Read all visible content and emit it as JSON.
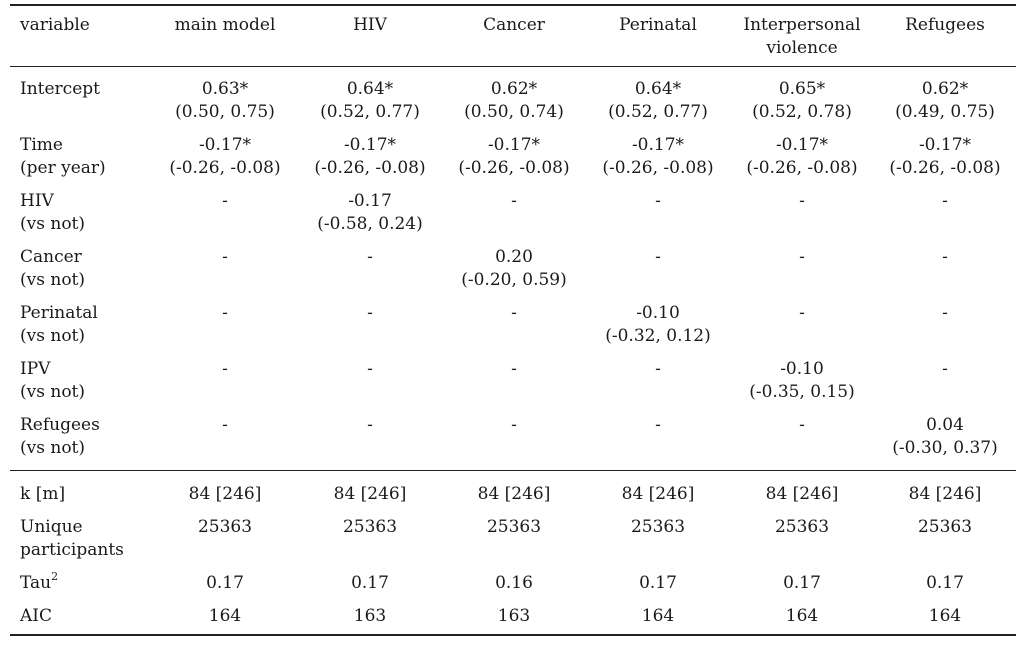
{
  "table": {
    "headers": [
      [
        "variable"
      ],
      [
        "main model"
      ],
      [
        "HIV"
      ],
      [
        "Cancer"
      ],
      [
        "Perinatal"
      ],
      [
        "Interpersonal",
        "violence"
      ],
      [
        "Refugees"
      ]
    ],
    "coef_rows": [
      {
        "label": [
          "Intercept",
          ""
        ],
        "cells": [
          [
            "0.63*",
            "(0.50, 0.75)"
          ],
          [
            "0.64*",
            "(0.52, 0.77)"
          ],
          [
            "0.62*",
            "(0.50, 0.74)"
          ],
          [
            "0.64*",
            "(0.52, 0.77)"
          ],
          [
            "0.65*",
            "(0.52, 0.78)"
          ],
          [
            "0.62*",
            "(0.49, 0.75)"
          ]
        ]
      },
      {
        "label": [
          "Time",
          "(per year)"
        ],
        "cells": [
          [
            "-0.17*",
            "(-0.26, -0.08)"
          ],
          [
            "-0.17*",
            "(-0.26, -0.08)"
          ],
          [
            "-0.17*",
            "(-0.26, -0.08)"
          ],
          [
            "-0.17*",
            "(-0.26, -0.08)"
          ],
          [
            "-0.17*",
            "(-0.26, -0.08)"
          ],
          [
            "-0.17*",
            "(-0.26, -0.08)"
          ]
        ]
      },
      {
        "label": [
          "HIV",
          "(vs not)"
        ],
        "cells": [
          [
            "-",
            ""
          ],
          [
            "-0.17",
            "(-0.58, 0.24)"
          ],
          [
            "-",
            ""
          ],
          [
            "-",
            ""
          ],
          [
            "-",
            ""
          ],
          [
            "-",
            ""
          ]
        ]
      },
      {
        "label": [
          "Cancer",
          "(vs not)"
        ],
        "cells": [
          [
            "-",
            ""
          ],
          [
            "-",
            ""
          ],
          [
            "0.20",
            "(-0.20, 0.59)"
          ],
          [
            "-",
            ""
          ],
          [
            "-",
            ""
          ],
          [
            "-",
            ""
          ]
        ]
      },
      {
        "label": [
          "Perinatal",
          "(vs not)"
        ],
        "cells": [
          [
            "-",
            ""
          ],
          [
            "-",
            ""
          ],
          [
            "-",
            ""
          ],
          [
            "-0.10",
            "(-0.32, 0.12)"
          ],
          [
            "-",
            ""
          ],
          [
            "-",
            ""
          ]
        ]
      },
      {
        "label": [
          "IPV",
          "(vs not)"
        ],
        "cells": [
          [
            "-",
            ""
          ],
          [
            "-",
            ""
          ],
          [
            "-",
            ""
          ],
          [
            "-",
            ""
          ],
          [
            "-0.10",
            "(-0.35, 0.15)"
          ],
          [
            "-",
            ""
          ]
        ]
      },
      {
        "label": [
          "Refugees",
          "(vs not)"
        ],
        "cells": [
          [
            "-",
            ""
          ],
          [
            "-",
            ""
          ],
          [
            "-",
            ""
          ],
          [
            "-",
            ""
          ],
          [
            "-",
            ""
          ],
          [
            "0.04",
            "(-0.30, 0.37)"
          ]
        ]
      }
    ],
    "stat_rows": [
      {
        "label": [
          "k [m]"
        ],
        "cells": [
          "84 [246]",
          "84 [246]",
          "84 [246]",
          "84 [246]",
          "84 [246]",
          "84 [246]"
        ]
      },
      {
        "label": [
          "Unique",
          "participants"
        ],
        "cells": [
          "25363",
          "25363",
          "25363",
          "25363",
          "25363",
          "25363"
        ]
      },
      {
        "label": [
          "Tau"
        ],
        "label_sup": "2",
        "cells": [
          "0.17",
          "0.17",
          "0.16",
          "0.17",
          "0.17",
          "0.17"
        ]
      },
      {
        "label": [
          "AIC"
        ],
        "cells": [
          "164",
          "163",
          "163",
          "164",
          "164",
          "164"
        ]
      }
    ]
  }
}
